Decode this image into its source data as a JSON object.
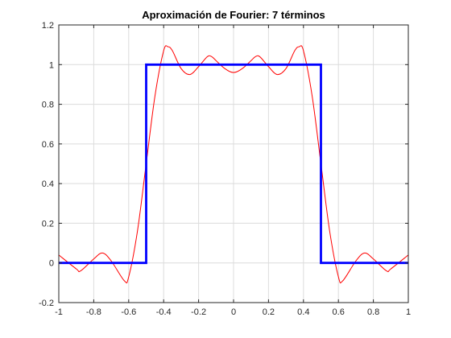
{
  "chart_data": {
    "type": "line",
    "title": "Aproximación de Fourier: 7 términos",
    "xlabel": "",
    "ylabel": "",
    "xlim": [
      -1,
      1
    ],
    "ylim": [
      -0.2,
      1.2
    ],
    "xticks": [
      -1,
      -0.8,
      -0.6,
      -0.4,
      -0.2,
      0,
      0.2,
      0.4,
      0.6,
      0.8,
      1
    ],
    "xtick_labels": [
      "-1",
      "-0.8",
      "-0.6",
      "-0.4",
      "-0.2",
      "0",
      "0.2",
      "0.4",
      "0.6",
      "0.8",
      "1"
    ],
    "yticks": [
      -0.2,
      0,
      0.2,
      0.4,
      0.6,
      0.8,
      1,
      1.2
    ],
    "ytick_labels": [
      "-0.2",
      "0",
      "0.2",
      "0.4",
      "0.6",
      "0.8",
      "1",
      "1.2"
    ],
    "grid": true,
    "series": [
      {
        "color": "#0000ff",
        "style": "thick-step",
        "x": [
          -1,
          -0.5,
          -0.5,
          0.5,
          0.5,
          1
        ],
        "y": [
          0,
          0,
          1,
          1,
          0,
          0
        ]
      },
      {
        "color": "#ff0000",
        "style": "thin-curve",
        "x": [
          -1,
          -0.9,
          -0.875,
          -0.8,
          -0.75,
          -0.7,
          -0.625,
          -0.6,
          -0.55,
          -0.5,
          -0.45,
          -0.4,
          -0.375,
          -0.35,
          -0.3,
          -0.25,
          -0.2,
          -0.15,
          -0.125,
          -0.1,
          -0.05,
          0,
          0.05,
          0.1,
          0.125,
          0.15,
          0.2,
          0.25,
          0.3,
          0.35,
          0.375,
          0.4,
          0.45,
          0.5,
          0.55,
          0.6,
          0.625,
          0.7,
          0.75,
          0.8,
          0.875,
          0.9,
          1
        ],
        "y": [
          0.04,
          -0.03,
          -0.04,
          0.02,
          0.05,
          0.01,
          -0.09,
          -0.07,
          0.16,
          0.5,
          0.84,
          1.07,
          1.09,
          1.07,
          0.98,
          0.95,
          0.99,
          1.04,
          1.04,
          1.02,
          0.98,
          0.96,
          0.98,
          1.02,
          1.04,
          1.04,
          0.99,
          0.95,
          0.98,
          1.07,
          1.09,
          1.07,
          0.84,
          0.5,
          0.16,
          -0.07,
          -0.09,
          0.01,
          0.05,
          0.02,
          -0.04,
          -0.03,
          0.04
        ]
      }
    ]
  }
}
